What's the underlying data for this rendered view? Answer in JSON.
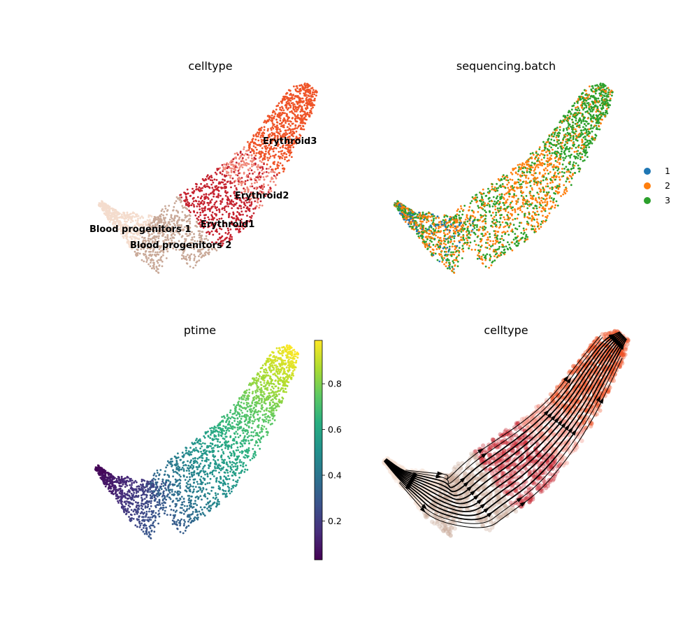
{
  "chart_data": [
    {
      "type": "scatter",
      "title": "celltype",
      "color_by": "categorical",
      "categories": [
        {
          "name": "Blood progenitors 1",
          "color": "#f4dccd"
        },
        {
          "name": "Blood progenitors 2",
          "color": "#c9a998"
        },
        {
          "name": "Erythroid1",
          "color": "#c5222e"
        },
        {
          "name": "Erythroid2",
          "color": "#f0897a"
        },
        {
          "name": "Erythroid3",
          "color": "#ef5428"
        }
      ],
      "grid": false,
      "legend": "on-data"
    },
    {
      "type": "scatter",
      "title": "sequencing.batch",
      "color_by": "categorical",
      "categories": [
        {
          "name": "1",
          "color": "#1f77b4"
        },
        {
          "name": "2",
          "color": "#ff7f0e"
        },
        {
          "name": "3",
          "color": "#2ca02c"
        }
      ],
      "grid": false,
      "legend": "right"
    },
    {
      "type": "scatter",
      "title": "ptime",
      "color_by": "continuous",
      "colormap": "viridis",
      "range": [
        0.03,
        0.99
      ],
      "colorbar_ticks": [
        "0.2",
        "0.4",
        "0.6",
        "0.8"
      ],
      "colorbar_tick_values": [
        0.2,
        0.4,
        0.6,
        0.8
      ],
      "grid": false
    },
    {
      "type": "scatter",
      "title": "celltype",
      "overlay": "velocity streamlines",
      "color_by": "categorical",
      "grid": false
    }
  ]
}
